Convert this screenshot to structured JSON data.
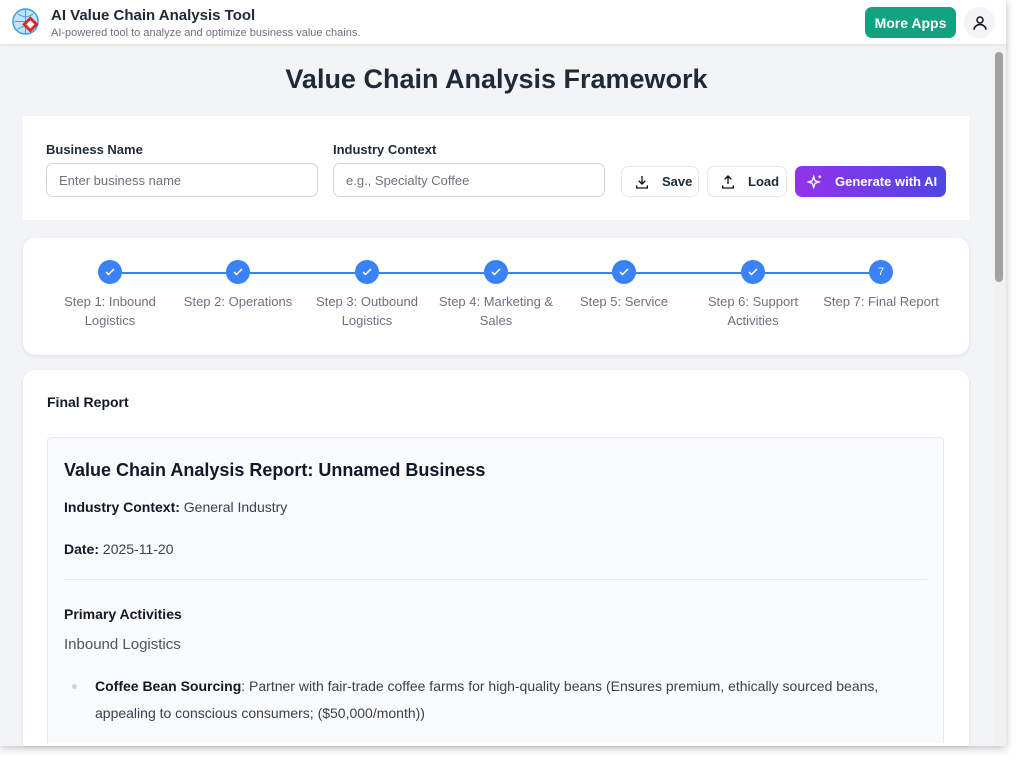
{
  "header": {
    "title": "AI Value Chain Analysis Tool",
    "subtitle": "AI-powered tool to analyze and optimize business value chains.",
    "more_apps": "More Apps"
  },
  "page_title": "Value Chain Analysis Framework",
  "form": {
    "business_label": "Business Name",
    "business_placeholder": "Enter business name",
    "industry_label": "Industry Context",
    "industry_placeholder": "e.g., Specialty Coffee",
    "save": "Save",
    "load": "Load",
    "generate": "Generate with AI"
  },
  "steps": [
    {
      "label": "Step 1: Inbound Logistics",
      "done": true
    },
    {
      "label": "Step 2: Operations",
      "done": true
    },
    {
      "label": "Step 3: Outbound Logistics",
      "done": true
    },
    {
      "label": "Step 4: Marketing & Sales",
      "done": true
    },
    {
      "label": "Step 5: Service",
      "done": true
    },
    {
      "label": "Step 6: Support Activities",
      "done": true
    },
    {
      "label": "Step 7: Final Report",
      "done": false,
      "number": "7"
    }
  ],
  "colors": {
    "accent": "#3b82f6",
    "more_apps": "#10a37f",
    "generate_start": "#9333ea",
    "generate_end": "#4f46e5"
  },
  "report": {
    "card_title": "Final Report",
    "title": "Value Chain Analysis Report: Unnamed Business",
    "industry_label": "Industry Context:",
    "industry_value": "General Industry",
    "date_label": "Date:",
    "date_value": "2025-11-20",
    "section": "Primary Activities",
    "subsection": "Inbound Logistics",
    "items": [
      {
        "name": "Coffee Bean Sourcing",
        "text": ": Partner with fair-trade coffee farms for high-quality beans (Ensures premium, ethically sourced beans, appealing to conscious consumers; ($50,000/month))"
      }
    ]
  }
}
